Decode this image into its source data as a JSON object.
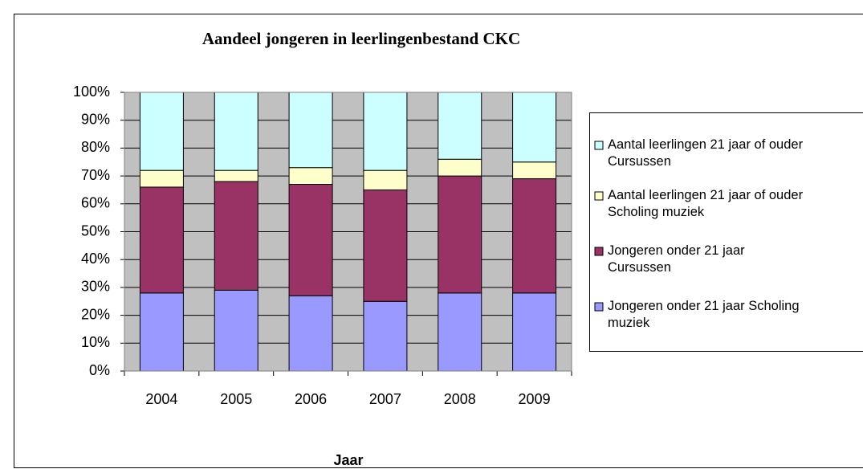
{
  "chart_data": {
    "type": "bar",
    "stacked": true,
    "title": "Aandeel jongeren in leerlingenbestand CKC",
    "x_label": "Jaar",
    "categories": [
      "2004",
      "2005",
      "2006",
      "2007",
      "2008",
      "2009"
    ],
    "series": [
      {
        "name": "Jongeren onder 21 jaar Scholing muziek",
        "color": "#9999ff",
        "values": [
          28,
          29,
          27,
          25,
          28,
          28
        ]
      },
      {
        "name": "Jongeren onder 21 jaar Cursussen",
        "color": "#993366",
        "values": [
          38,
          39,
          40,
          40,
          42,
          41
        ]
      },
      {
        "name": "Aantal leerlingen 21 jaar of ouder Scholing muziek",
        "color": "#ffffcc",
        "values": [
          6,
          4,
          6,
          7,
          6,
          6
        ]
      },
      {
        "name": "Aantal leerlingen 21 jaar of ouder Cursussen",
        "color": "#ccffff",
        "values": [
          28,
          28,
          27,
          28,
          24,
          25
        ]
      }
    ],
    "ylim": [
      0,
      100
    ],
    "yticks": [
      {
        "value": 0,
        "label": "0%"
      },
      {
        "value": 10,
        "label": "10%"
      },
      {
        "value": 20,
        "label": "20%"
      },
      {
        "value": 30,
        "label": "30%"
      },
      {
        "value": 40,
        "label": "40%"
      },
      {
        "value": 50,
        "label": "50%"
      },
      {
        "value": 60,
        "label": "60%"
      },
      {
        "value": 70,
        "label": "70%"
      },
      {
        "value": 80,
        "label": "80%"
      },
      {
        "value": 90,
        "label": "90%"
      },
      {
        "value": 100,
        "label": "100%"
      }
    ],
    "grid": true,
    "legend": "right",
    "plot_background": "#c0c0c0"
  }
}
